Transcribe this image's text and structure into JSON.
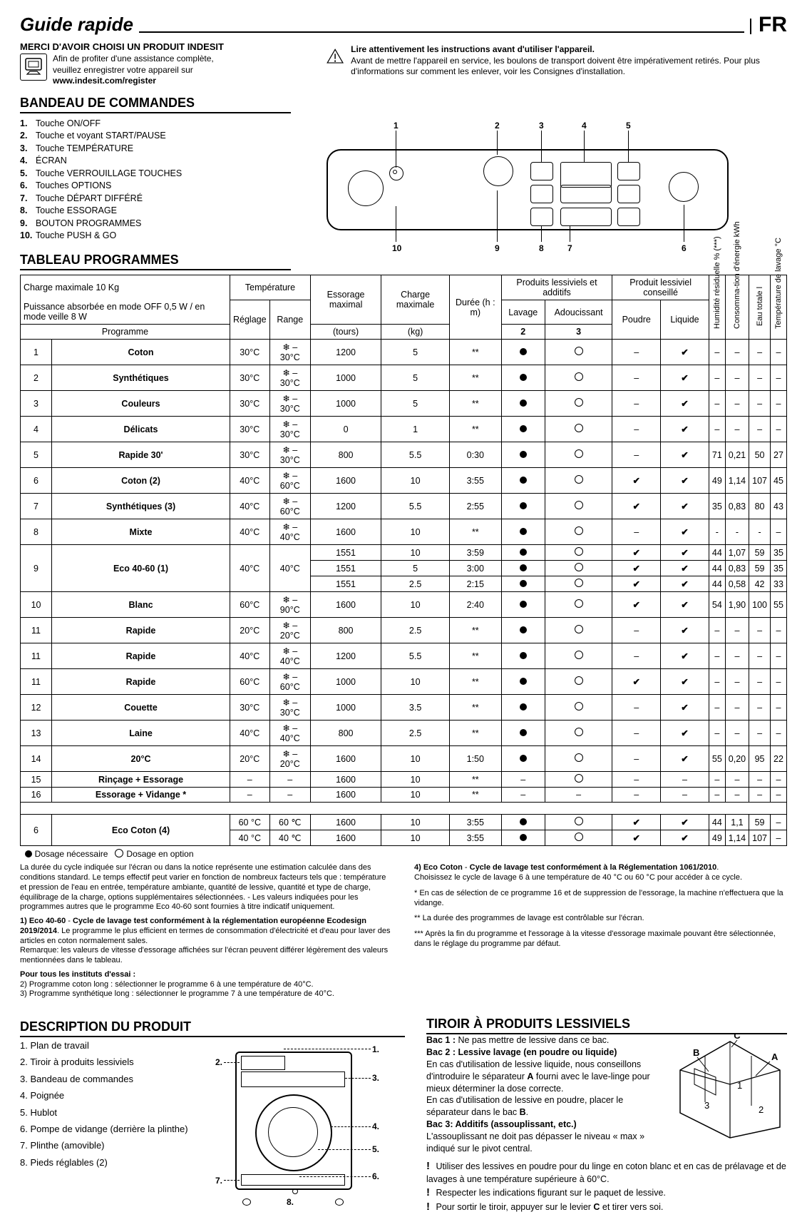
{
  "header": {
    "title": "Guide rapide",
    "lang": "FR"
  },
  "intro": {
    "merci": "MERCI D'AVOIR CHOISI UN PRODUIT INDESIT",
    "line1": "Afin de profiter d'une assistance complète,",
    "line2": "veuillez enregistrer votre appareil sur",
    "url": "www.indesit.com/register",
    "warn_title": "Lire attentivement les instructions avant d'utiliser l'appareil.",
    "warn_body": "Avant de mettre l'appareil en service, les boulons de transport doivent être impérativement retirés. Pour plus d'informations sur comment les enlever, voir les Consignes d'installation."
  },
  "sections": {
    "bandeau": "BANDEAU DE COMMANDES",
    "tableau": "TABLEAU PROGRAMMES",
    "desc": "DESCRIPTION DU PRODUIT",
    "tiroir": "TIROIR À PRODUITS LESSIVIELS"
  },
  "commands": [
    "Touche ON/OFF",
    "Touche et voyant START/PAUSE",
    "Touche TEMPÉRATURE",
    "ÉCRAN",
    "Touche VERROUILLAGE TOUCHES",
    "Touches OPTIONS",
    "Touche DÉPART DIFFÉRÉ",
    "Touche ESSORAGE",
    "BOUTON PROGRAMMES",
    "Touche PUSH & GO"
  ],
  "panel_labels": {
    "top": [
      "1",
      "2",
      "3",
      "4",
      "5"
    ],
    "bot": [
      "10",
      "9",
      "8",
      "7",
      "6"
    ]
  },
  "table": {
    "caption1": "Charge maximale 10 Kg",
    "caption2": "Puissance absorbée en mode OFF 0,5 W / en mode veille 8 W",
    "top_headers": {
      "produits": "Produits lessiviels et additifs",
      "conseille": "Produit lessiviel conseillé"
    },
    "headers": {
      "programme": "Programme",
      "temperature": "Température",
      "reglage": "Réglage",
      "range": "Range",
      "essorage": "Essorage maximal",
      "essorage2": "(tours)",
      "charge": "Charge maximale",
      "charge2": "(kg)",
      "duree": "Durée (h : m)",
      "lavage": "Lavage",
      "adouc": "Adoucissant",
      "comp2": "2",
      "comp3": "3",
      "poudre": "Poudre",
      "liquide": "Liquide",
      "humidite": "Humidité résiduelle % (***)",
      "conso": "Consomma-tion d'énergie kWh",
      "eau": "Eau totale l",
      "templ": "Température de lavage °C"
    },
    "rows": [
      {
        "n": "1",
        "name": "Coton",
        "reg": "30°C",
        "rng": "❄ – 30°C",
        "rpm": "1200",
        "kg": "5",
        "dur": "**",
        "lav": "F",
        "ad": "O",
        "pd": "–",
        "lq": "C",
        "h": "–",
        "e": "–",
        "w": "–",
        "t": "–"
      },
      {
        "n": "2",
        "name": "Synthétiques",
        "reg": "30°C",
        "rng": "❄ – 30°C",
        "rpm": "1000",
        "kg": "5",
        "dur": "**",
        "lav": "F",
        "ad": "O",
        "pd": "–",
        "lq": "C",
        "h": "–",
        "e": "–",
        "w": "–",
        "t": "–"
      },
      {
        "n": "3",
        "name": "Couleurs",
        "reg": "30°C",
        "rng": "❄ – 30°C",
        "rpm": "1000",
        "kg": "5",
        "dur": "**",
        "lav": "F",
        "ad": "O",
        "pd": "–",
        "lq": "C",
        "h": "–",
        "e": "–",
        "w": "–",
        "t": "–"
      },
      {
        "n": "4",
        "name": "Délicats",
        "reg": "30°C",
        "rng": "❄ – 30°C",
        "rpm": "0",
        "kg": "1",
        "dur": "**",
        "lav": "F",
        "ad": "O",
        "pd": "–",
        "lq": "C",
        "h": "–",
        "e": "–",
        "w": "–",
        "t": "–"
      },
      {
        "n": "5",
        "name": "Rapide 30'",
        "reg": "30°C",
        "rng": "❄ – 30°C",
        "rpm": "800",
        "kg": "5.5",
        "dur": "0:30",
        "lav": "F",
        "ad": "O",
        "pd": "–",
        "lq": "C",
        "h": "71",
        "e": "0,21",
        "w": "50",
        "t": "27"
      },
      {
        "n": "6",
        "name": "Coton (2)",
        "reg": "40°C",
        "rng": "❄ – 60°C",
        "rpm": "1600",
        "kg": "10",
        "dur": "3:55",
        "lav": "F",
        "ad": "O",
        "pd": "C",
        "lq": "C",
        "h": "49",
        "e": "1,14",
        "w": "107",
        "t": "45"
      },
      {
        "n": "7",
        "name": "Synthétiques (3)",
        "reg": "40°C",
        "rng": "❄ – 60°C",
        "rpm": "1200",
        "kg": "5.5",
        "dur": "2:55",
        "lav": "F",
        "ad": "O",
        "pd": "C",
        "lq": "C",
        "h": "35",
        "e": "0,83",
        "w": "80",
        "t": "43"
      },
      {
        "n": "8",
        "name": "Mixte",
        "reg": "40°C",
        "rng": "❄ – 40°C",
        "rpm": "1600",
        "kg": "10",
        "dur": "**",
        "lav": "F",
        "ad": "O",
        "pd": "–",
        "lq": "C",
        "h": "-",
        "e": "-",
        "w": "-",
        "t": "–"
      },
      {
        "n": "9",
        "name": "Eco 40-60 (1)",
        "rowspan": 3,
        "reg": "40°C",
        "rng": "40°C",
        "sub": [
          {
            "rpm": "1551",
            "kg": "10",
            "dur": "3:59",
            "lav": "F",
            "ad": "O",
            "pd": "C",
            "lq": "C",
            "h": "44",
            "e": "1,07",
            "w": "59",
            "t": "35"
          },
          {
            "rpm": "1551",
            "kg": "5",
            "dur": "3:00",
            "lav": "F",
            "ad": "O",
            "pd": "C",
            "lq": "C",
            "h": "44",
            "e": "0,83",
            "w": "59",
            "t": "35"
          },
          {
            "rpm": "1551",
            "kg": "2.5",
            "dur": "2:15",
            "lav": "F",
            "ad": "O",
            "pd": "C",
            "lq": "C",
            "h": "44",
            "e": "0,58",
            "w": "42",
            "t": "33"
          }
        ]
      },
      {
        "n": "10",
        "name": "Blanc",
        "reg": "60°C",
        "rng": "❄ – 90°C",
        "rpm": "1600",
        "kg": "10",
        "dur": "2:40",
        "lav": "F",
        "ad": "O",
        "pd": "C",
        "lq": "C",
        "h": "54",
        "e": "1,90",
        "w": "100",
        "t": "55"
      },
      {
        "n": "11",
        "name": "Rapide",
        "reg": "20°C",
        "rng": "❄ – 20°C",
        "rpm": "800",
        "kg": "2.5",
        "dur": "**",
        "lav": "F",
        "ad": "O",
        "pd": "–",
        "lq": "C",
        "h": "–",
        "e": "–",
        "w": "–",
        "t": "–"
      },
      {
        "n": "11",
        "name": "Rapide",
        "reg": "40°C",
        "rng": "❄ – 40°C",
        "rpm": "1200",
        "kg": "5.5",
        "dur": "**",
        "lav": "F",
        "ad": "O",
        "pd": "–",
        "lq": "C",
        "h": "–",
        "e": "–",
        "w": "–",
        "t": "–"
      },
      {
        "n": "11",
        "name": "Rapide",
        "reg": "60°C",
        "rng": "❄ – 60°C",
        "rpm": "1000",
        "kg": "10",
        "dur": "**",
        "lav": "F",
        "ad": "O",
        "pd": "C",
        "lq": "C",
        "h": "–",
        "e": "–",
        "w": "–",
        "t": "–"
      },
      {
        "n": "12",
        "name": "Couette",
        "reg": "30°C",
        "rng": "❄ – 30°C",
        "rpm": "1000",
        "kg": "3.5",
        "dur": "**",
        "lav": "F",
        "ad": "O",
        "pd": "–",
        "lq": "C",
        "h": "–",
        "e": "–",
        "w": "–",
        "t": "–"
      },
      {
        "n": "13",
        "name": "Laine",
        "reg": "40°C",
        "rng": "❄ – 40°C",
        "rpm": "800",
        "kg": "2.5",
        "dur": "**",
        "lav": "F",
        "ad": "O",
        "pd": "–",
        "lq": "C",
        "h": "–",
        "e": "–",
        "w": "–",
        "t": "–"
      },
      {
        "n": "14",
        "name": "20°C",
        "reg": "20°C",
        "rng": "❄ – 20°C",
        "rpm": "1600",
        "kg": "10",
        "dur": "1:50",
        "lav": "F",
        "ad": "O",
        "pd": "–",
        "lq": "C",
        "h": "55",
        "e": "0,20",
        "w": "95",
        "t": "22"
      },
      {
        "n": "15",
        "name": "Rinçage + Essorage",
        "reg": "–",
        "rng": "–",
        "rpm": "1600",
        "kg": "10",
        "dur": "**",
        "lav": "–",
        "ad": "O",
        "pd": "–",
        "lq": "–",
        "h": "–",
        "e": "–",
        "w": "–",
        "t": "–"
      },
      {
        "n": "16",
        "name": "Essorage + Vidange *",
        "reg": "–",
        "rng": "–",
        "rpm": "1600",
        "kg": "10",
        "dur": "**",
        "lav": "–",
        "ad": "–",
        "pd": "–",
        "lq": "–",
        "h": "–",
        "e": "–",
        "w": "–",
        "t": "–"
      }
    ],
    "extra": {
      "n": "6",
      "name": "Eco Coton (4)",
      "sub": [
        {
          "reg": "60 °C",
          "rng": "60 ℃",
          "rpm": "1600",
          "kg": "10",
          "dur": "3:55",
          "lav": "F",
          "ad": "O",
          "pd": "C",
          "lq": "C",
          "h": "44",
          "e": "1,1",
          "w": "59",
          "t": "–"
        },
        {
          "reg": "40 °C",
          "rng": "40 ℃",
          "rpm": "1600",
          "kg": "10",
          "dur": "3:55",
          "lav": "F",
          "ad": "O",
          "pd": "C",
          "lq": "C",
          "h": "49",
          "e": "1,14",
          "w": "107",
          "t": "–"
        }
      ]
    },
    "legend_full": "Dosage nécessaire",
    "legend_open": "Dosage en option"
  },
  "footnotes": {
    "left": [
      "La durée du cycle indiquée sur l'écran ou dans la notice représente une estimation calculée dans des conditions standard. Le temps effectif peut varier en fonction de nombreux facteurs tels que : température et pression de l'eau en entrée, température ambiante, quantité de lessive, quantité et type de charge, équilibrage de la charge, options supplémentaires sélectionnées. - Les valeurs indiquées pour les programmes autres que le programme Eco 40-60 sont fournies à titre indicatif uniquement.",
      "<b>1) Eco 40-60</b> -  <b>Cycle de lavage test conformément à la réglementation européenne Ecodesign 2019/2014</b>. Le programme le plus efficient en termes de consommation d'électricité et d'eau pour laver des articles en coton normalement sales.<br>Remarque: les valeurs de vitesse d'essorage affichées sur l'écran peuvent différer légèrement des valeurs mentionnées dans le tableau.",
      "<b>Pour tous les instituts d'essai :</b><br>2)  Programme coton long : sélectionner le programme 6 à une température de 40°C.<br>3)  Programme synthétique long : sélectionner le programme 7 à une température de 40°C."
    ],
    "right": [
      "<b>4) Eco Coton</b> -  <b>Cycle de lavage test conformément à la Réglementation 1061/2010</b>.<br>Choisissez le cycle de lavage 6 à une température de 40 °C ou 60 °C pour accéder à ce cycle.",
      "*  En cas de sélection de ce programme 16 et de suppression de l'essorage, la machine n'effectuera que la vidange.",
      "** La durée des programmes de lavage est contrôlable sur l'écran.",
      "***  Après la fin du programme et l'essorage à la vitesse d'essorage maximale pouvant être sélectionnée, dans le réglage du programme par défaut."
    ]
  },
  "description": {
    "items": [
      "1. Plan de travail",
      "2. Tiroir à produits lessiviels",
      "3. Bandeau de commandes",
      "4. Poignée",
      "5. Hublot",
      "6. Pompe de vidange (derrière la plinthe)",
      "7. Plinthe (amovible)",
      "8. Pieds réglables (2)"
    ],
    "labels": [
      "1.",
      "2.",
      "3.",
      "4.",
      "5.",
      "6.",
      "7.",
      "8."
    ]
  },
  "tiroir": {
    "b1": "Bac 1 :",
    "b1t": " Ne pas mettre de lessive dans ce bac.",
    "b2": "Bac 2 : Lessive lavage (en poudre ou liquide)",
    "b2t": "En cas d'utilisation de lessive liquide, nous conseillons d'introduire le séparateur <b>A</b> fourni avec le lave-linge pour mieux déterminer la dose correcte.",
    "b2t2": "En cas d'utilisation de lessive en poudre, placer le séparateur dans le bac <b>B</b>.",
    "b3": "Bac 3: Additifs (assouplissant, etc.)",
    "b3t": "L'assouplissant ne doit pas dépasser le niveau « max » indiqué sur le pivot central.",
    "w1": "Utiliser des lessives en poudre pour du linge en coton blanc et en cas de prélavage et de lavages à une température supérieure à 60°C.",
    "w2": "Respecter les indications figurant sur le paquet de lessive.",
    "w3": "Pour sortir le tiroir, appuyer sur le levier <b>C</b> et tirer vers soi.",
    "draw_labels": {
      "A": "A",
      "B": "B",
      "C": "C",
      "n1": "1",
      "n2": "2",
      "n3": "3"
    }
  }
}
